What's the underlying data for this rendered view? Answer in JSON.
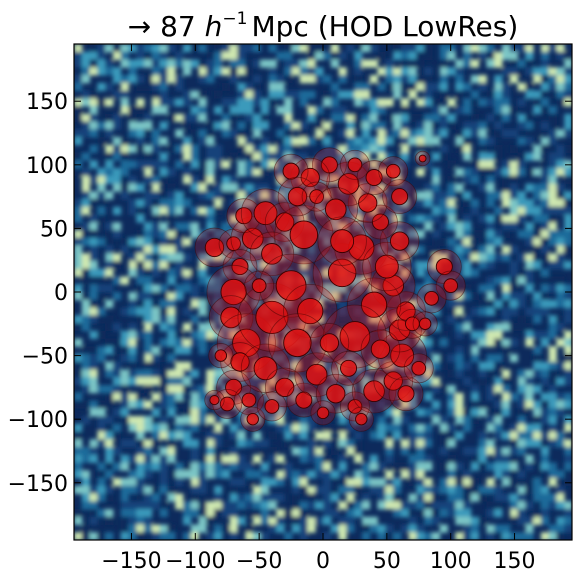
{
  "chart_data": {
    "type": "scatter",
    "title": "→ 87 h⁻¹ Mpc (HOD LowRes)",
    "title_parts": {
      "arrow": "→",
      "number": "87",
      "unit_symbol": "h",
      "unit_exp": "−1",
      "unit_rest": "Mpc (HOD LowRes)"
    },
    "xlabel": "",
    "ylabel": "",
    "xlim": [
      -195,
      195
    ],
    "ylim": [
      -195,
      195
    ],
    "grid": false,
    "xticks": [
      -150,
      -100,
      -50,
      0,
      50,
      100,
      150
    ],
    "yticks": [
      -150,
      -100,
      -50,
      0,
      50,
      100,
      150
    ],
    "xtick_labels": [
      "−150",
      "−100",
      "−50",
      "0",
      "50",
      "100",
      "150"
    ],
    "ytick_labels": [
      "−150",
      "−100",
      "−50",
      "0",
      "50",
      "100",
      "150"
    ],
    "background_colormap": [
      "#0d2a5c",
      "#14427a",
      "#1f6a9a",
      "#3a9abb",
      "#7cc6c6",
      "#cfe8b0"
    ],
    "marker_color": "#e01010",
    "marker_edge": "#3a0000",
    "halos": [
      {
        "x": -85,
        "y": 35,
        "r": 8
      },
      {
        "x": -70,
        "y": 38,
        "r": 6
      },
      {
        "x": -55,
        "y": 42,
        "r": 9
      },
      {
        "x": -62,
        "y": 60,
        "r": 7
      },
      {
        "x": -45,
        "y": 62,
        "r": 10
      },
      {
        "x": -30,
        "y": 55,
        "r": 8
      },
      {
        "x": -15,
        "y": 45,
        "r": 12
      },
      {
        "x": -40,
        "y": 30,
        "r": 9
      },
      {
        "x": -65,
        "y": 20,
        "r": 7
      },
      {
        "x": -70,
        "y": 0,
        "r": 11
      },
      {
        "x": -72,
        "y": -20,
        "r": 9
      },
      {
        "x": -60,
        "y": -40,
        "r": 12
      },
      {
        "x": -65,
        "y": -55,
        "r": 8
      },
      {
        "x": -70,
        "y": -75,
        "r": 7
      },
      {
        "x": -75,
        "y": -88,
        "r": 6
      },
      {
        "x": -58,
        "y": -85,
        "r": 6
      },
      {
        "x": -45,
        "y": -60,
        "r": 10
      },
      {
        "x": -40,
        "y": -20,
        "r": 14
      },
      {
        "x": -25,
        "y": 5,
        "r": 13
      },
      {
        "x": -10,
        "y": -15,
        "r": 11
      },
      {
        "x": -20,
        "y": -40,
        "r": 12
      },
      {
        "x": -30,
        "y": -75,
        "r": 8
      },
      {
        "x": -15,
        "y": -85,
        "r": 7
      },
      {
        "x": -5,
        "y": -65,
        "r": 9
      },
      {
        "x": 10,
        "y": -80,
        "r": 8
      },
      {
        "x": 25,
        "y": -90,
        "r": 6
      },
      {
        "x": 40,
        "y": -78,
        "r": 9
      },
      {
        "x": 55,
        "y": -70,
        "r": 8
      },
      {
        "x": 62,
        "y": -50,
        "r": 10
      },
      {
        "x": 60,
        "y": -30,
        "r": 9
      },
      {
        "x": 65,
        "y": -15,
        "r": 8
      },
      {
        "x": 70,
        "y": -25,
        "r": 6
      },
      {
        "x": 55,
        "y": 5,
        "r": 9
      },
      {
        "x": 40,
        "y": -10,
        "r": 11
      },
      {
        "x": 25,
        "y": -35,
        "r": 13
      },
      {
        "x": 45,
        "y": -45,
        "r": 8
      },
      {
        "x": 15,
        "y": 15,
        "r": 12
      },
      {
        "x": 30,
        "y": 35,
        "r": 11
      },
      {
        "x": 50,
        "y": 20,
        "r": 10
      },
      {
        "x": 60,
        "y": 40,
        "r": 8
      },
      {
        "x": 45,
        "y": 55,
        "r": 7
      },
      {
        "x": 35,
        "y": 70,
        "r": 8
      },
      {
        "x": 20,
        "y": 85,
        "r": 9
      },
      {
        "x": 5,
        "y": 100,
        "r": 7
      },
      {
        "x": -10,
        "y": 90,
        "r": 8
      },
      {
        "x": -25,
        "y": 95,
        "r": 7
      },
      {
        "x": -20,
        "y": 75,
        "r": 8
      },
      {
        "x": -5,
        "y": 75,
        "r": 6
      },
      {
        "x": 10,
        "y": 65,
        "r": 9
      },
      {
        "x": 25,
        "y": 100,
        "r": 6
      },
      {
        "x": 40,
        "y": 90,
        "r": 7
      },
      {
        "x": 55,
        "y": 95,
        "r": 6
      },
      {
        "x": 60,
        "y": 75,
        "r": 7
      },
      {
        "x": 78,
        "y": 105,
        "r": 3
      },
      {
        "x": 95,
        "y": 20,
        "r": 7
      },
      {
        "x": 100,
        "y": 5,
        "r": 6
      },
      {
        "x": 85,
        "y": -5,
        "r": 6
      },
      {
        "x": 80,
        "y": -25,
        "r": 5
      },
      {
        "x": -55,
        "y": -100,
        "r": 5
      },
      {
        "x": 0,
        "y": -95,
        "r": 5
      },
      {
        "x": 30,
        "y": -100,
        "r": 5
      },
      {
        "x": -85,
        "y": -85,
        "r": 4
      },
      {
        "x": -40,
        "y": -90,
        "r": 6
      },
      {
        "x": 5,
        "y": -40,
        "r": 8
      },
      {
        "x": 20,
        "y": -60,
        "r": 7
      },
      {
        "x": -50,
        "y": 5,
        "r": 6
      },
      {
        "x": 65,
        "y": -80,
        "r": 7
      },
      {
        "x": 75,
        "y": -60,
        "r": 6
      },
      {
        "x": -80,
        "y": -50,
        "r": 5
      },
      {
        "x": 15,
        "y": 40,
        "r": 10
      }
    ]
  }
}
